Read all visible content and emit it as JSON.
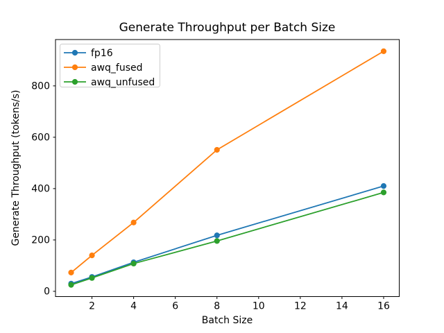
{
  "chart_data": {
    "type": "line",
    "title": "Generate Throughput per Batch Size",
    "xlabel": "Batch Size",
    "ylabel": "Generate Throughput (tokens/s)",
    "x": [
      1,
      2,
      4,
      8,
      16
    ],
    "series": [
      {
        "name": "fp16",
        "color": "#1f77b4",
        "values": [
          30,
          56,
          113,
          218,
          410
        ]
      },
      {
        "name": "awq_fused",
        "color": "#ff7f0e",
        "values": [
          73,
          140,
          268,
          551,
          935
        ]
      },
      {
        "name": "awq_unfused",
        "color": "#2ca02c",
        "values": [
          25,
          52,
          108,
          196,
          385
        ]
      }
    ],
    "xticks": [
      2,
      4,
      6,
      8,
      10,
      12,
      14,
      16
    ],
    "yticks": [
      0,
      200,
      400,
      600,
      800
    ],
    "xlim": [
      0.25,
      16.75
    ],
    "ylim": [
      -20.5,
      980.5
    ],
    "legend_position": "upper left",
    "grid": false,
    "marker": "circle",
    "line_width": 1.8,
    "marker_radius": 4.1,
    "spine_color": "#000000",
    "legend_border_color": "#cccccc",
    "background_color": "#ffffff"
  }
}
